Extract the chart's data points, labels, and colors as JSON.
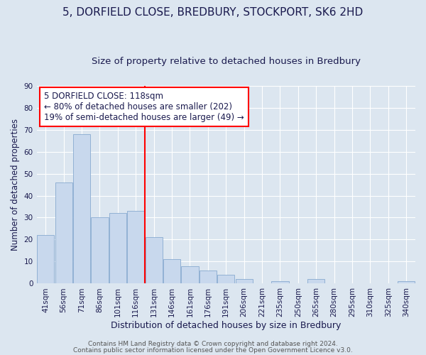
{
  "title1": "5, DORFIELD CLOSE, BREDBURY, STOCKPORT, SK6 2HD",
  "title2": "Size of property relative to detached houses in Bredbury",
  "xlabel": "Distribution of detached houses by size in Bredbury",
  "ylabel": "Number of detached properties",
  "categories": [
    "41sqm",
    "56sqm",
    "71sqm",
    "86sqm",
    "101sqm",
    "116sqm",
    "131sqm",
    "146sqm",
    "161sqm",
    "176sqm",
    "191sqm",
    "206sqm",
    "221sqm",
    "235sqm",
    "250sqm",
    "265sqm",
    "280sqm",
    "295sqm",
    "310sqm",
    "325sqm",
    "340sqm"
  ],
  "values": [
    22,
    46,
    68,
    30,
    32,
    33,
    21,
    11,
    8,
    6,
    4,
    2,
    0,
    1,
    0,
    2,
    0,
    0,
    0,
    0,
    1
  ],
  "bar_color": "#c8d8ed",
  "bar_edge_color": "#88aad0",
  "property_line_x": 5.5,
  "annotation_text": "5 DORFIELD CLOSE: 118sqm\n← 80% of detached houses are smaller (202)\n19% of semi-detached houses are larger (49) →",
  "annotation_box_color": "white",
  "annotation_box_edgecolor": "red",
  "vline_color": "red",
  "ylim": [
    0,
    90
  ],
  "yticks": [
    0,
    10,
    20,
    30,
    40,
    50,
    60,
    70,
    80,
    90
  ],
  "bg_color": "#dce6f0",
  "plot_bg_color": "#dce6f0",
  "footer1": "Contains HM Land Registry data © Crown copyright and database right 2024.",
  "footer2": "Contains public sector information licensed under the Open Government Licence v3.0.",
  "title1_fontsize": 11,
  "title2_fontsize": 9.5,
  "xlabel_fontsize": 9,
  "ylabel_fontsize": 8.5,
  "tick_fontsize": 7.5,
  "footer_fontsize": 6.5,
  "annotation_fontsize": 8.5
}
